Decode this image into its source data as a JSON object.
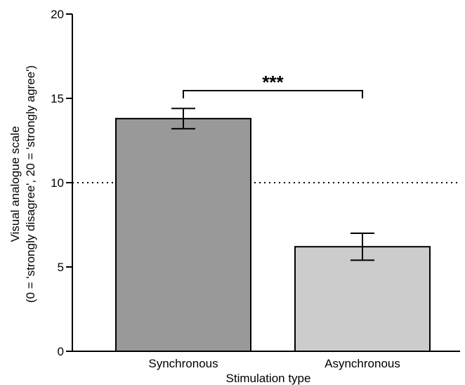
{
  "chart_data": {
    "type": "bar",
    "xlabel": "Stimulation type",
    "ylabel_line1": "Visual analogue scale",
    "ylabel_line2": "(0 = 'strongly disagree', 20 = 'strongly agree')",
    "ylim": [
      0,
      20
    ],
    "yticks": [
      0,
      5,
      10,
      15,
      20
    ],
    "ytick_labels": [
      "0",
      "5",
      "10",
      "15",
      "20"
    ],
    "categories": [
      "Synchronous",
      "Asynchronous"
    ],
    "values": [
      13.8,
      6.2
    ],
    "error_low": [
      13.2,
      5.4
    ],
    "error_high": [
      14.4,
      7.0
    ],
    "bar_colors": [
      "#999999",
      "#cccccc"
    ],
    "reference_line": {
      "value": 10,
      "style": "dotted"
    },
    "significance": {
      "label": "***",
      "between": [
        "Synchronous",
        "Asynchronous"
      ]
    }
  }
}
